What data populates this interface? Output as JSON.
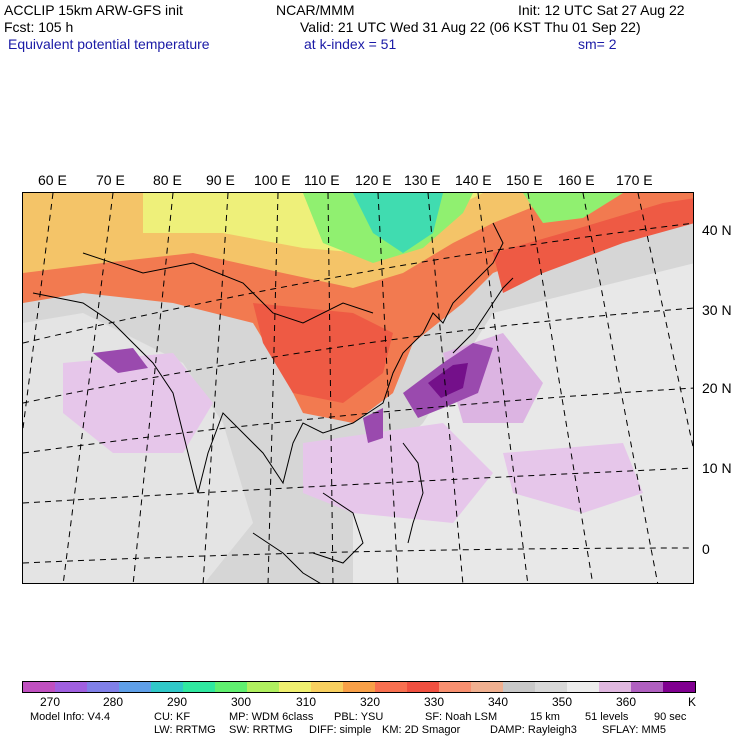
{
  "header": {
    "model": "ACCLIP 15km ARW-GFS init",
    "forecast": "Fcst:  105 h",
    "field": "Equivalent potential temperature",
    "center": "NCAR/MMM",
    "init": "Init: 12 UTC Sat 27 Aug 22",
    "valid": "Valid: 21 UTC Wed 31 Aug 22 (06 KST Thu 01 Sep 22)",
    "k_index": "at k-index =  51",
    "smooth": "sm= 2"
  },
  "map": {
    "lon_labels": [
      "60 E",
      "70 E",
      "80 E",
      "90 E",
      "100 E",
      "110 E",
      "120 E",
      "130 E",
      "140 E",
      "150 E",
      "160 E",
      "170 E"
    ],
    "lat_labels": [
      "40 N",
      "30 N",
      "20 N",
      "10 N",
      "0"
    ]
  },
  "colorbar": {
    "unit": "K",
    "ticks": [
      "270",
      "280",
      "290",
      "300",
      "310",
      "320",
      "330",
      "340",
      "350",
      "360"
    ],
    "colors": [
      "#c050c0",
      "#a060e0",
      "#8080e8",
      "#5f9fe8",
      "#30c8c8",
      "#30e8a0",
      "#60f070",
      "#b0f060",
      "#f0f070",
      "#f8d060",
      "#f8a048",
      "#f87050",
      "#f05040",
      "#f89070",
      "#f0b090",
      "#c8c8c8",
      "#d8d8d8",
      "#ededed",
      "#e0b8e0",
      "#b060c0",
      "#800090"
    ]
  },
  "footer": {
    "line1": [
      "Model Info: V4.4",
      "CU: KF",
      "MP: WDM 6class",
      "PBL: YSU",
      "SF: Noah LSM",
      "15 km",
      "51 levels",
      "90 sec"
    ],
    "line2": [
      "LW: RRTMG",
      "SW: RRTMG",
      "DIFF: simple",
      "KM: 2D Smagor",
      "DAMP: Rayleigh3",
      "SFLAY: MM5"
    ]
  }
}
